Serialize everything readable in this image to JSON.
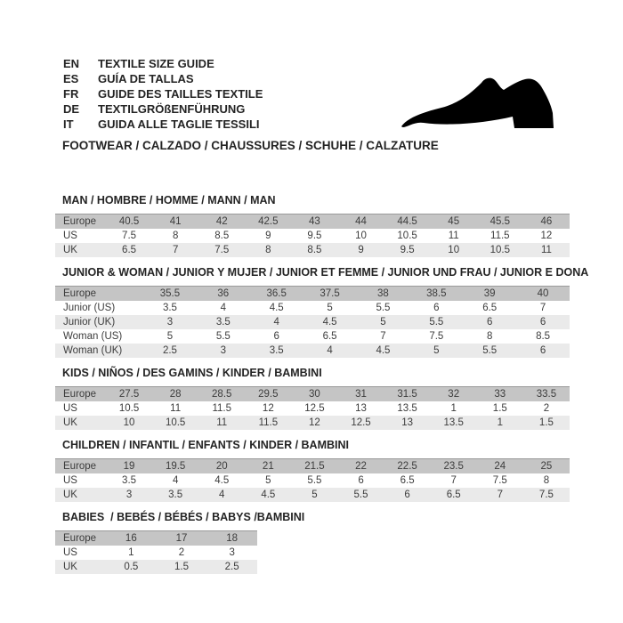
{
  "page": {
    "background": "#ffffff"
  },
  "header": {
    "languages": [
      {
        "code": "EN",
        "label": "TEXTILE SIZE GUIDE"
      },
      {
        "code": "ES",
        "label": "GUÍA DE TALLAS"
      },
      {
        "code": "FR",
        "label": "GUIDE DES TAILLES TEXTILE"
      },
      {
        "code": "DE",
        "label": "TEXTILGRÖßENFÜHRUNG"
      },
      {
        "code": "IT",
        "label": "GUIDA ALLE TAGLIE TESSILI"
      }
    ],
    "category_heading": "FOOTWEAR / CALZADO / CHAUSSURES / SCHUHE / CALZATURE",
    "icon": {
      "name": "dress-shoe-silhouette",
      "color": "#000000"
    }
  },
  "colors": {
    "header_row_bg": "#c5c5c5",
    "header_row_border": "#9a9a9a",
    "alt_row_bg": "#eaeaea",
    "body_text": "#3d3d3d",
    "title_text": "#242424"
  },
  "tables": [
    {
      "id": "man",
      "title": "MAN / HOMBRE / HOMME / MANN / MAN",
      "rows": [
        {
          "label": "Europe",
          "header": true,
          "values": [
            "40.5",
            "41",
            "42",
            "42.5",
            "43",
            "44",
            "44.5",
            "45",
            "45.5",
            "46"
          ]
        },
        {
          "label": "US",
          "values": [
            "7.5",
            "8",
            "8.5",
            "9",
            "9.5",
            "10",
            "10.5",
            "11",
            "11.5",
            "12"
          ]
        },
        {
          "label": "UK",
          "values": [
            "6.5",
            "7",
            "7.5",
            "8",
            "8.5",
            "9",
            "9.5",
            "10",
            "10.5",
            "11"
          ]
        }
      ]
    },
    {
      "id": "junior-woman",
      "title": "JUNIOR & WOMAN / JUNIOR Y MUJER / JUNIOR ET FEMME / JUNIOR UND FRAU / JUNIOR E DONA",
      "rows": [
        {
          "label": "Europe",
          "header": true,
          "values": [
            "35.5",
            "36",
            "36.5",
            "37.5",
            "38",
            "38.5",
            "39",
            "40"
          ]
        },
        {
          "label": "Junior (US)",
          "values": [
            "3.5",
            "4",
            "4.5",
            "5",
            "5.5",
            "6",
            "6.5",
            "7"
          ]
        },
        {
          "label": "Junior (UK)",
          "values": [
            "3",
            "3.5",
            "4",
            "4.5",
            "5",
            "5.5",
            "6",
            "6"
          ]
        },
        {
          "label": "Woman (US)",
          "values": [
            "5",
            "5.5",
            "6",
            "6.5",
            "7",
            "7.5",
            "8",
            "8.5"
          ]
        },
        {
          "label": "Woman (UK)",
          "values": [
            "2.5",
            "3",
            "3.5",
            "4",
            "4.5",
            "5",
            "5.5",
            "6"
          ]
        }
      ]
    },
    {
      "id": "kids",
      "title": "KIDS / NIÑOS / DES GAMINS / KINDER / BAMBINI",
      "rows": [
        {
          "label": "Europe",
          "header": true,
          "values": [
            "27.5",
            "28",
            "28.5",
            "29.5",
            "30",
            "31",
            "31.5",
            "32",
            "33",
            "33.5"
          ]
        },
        {
          "label": "US",
          "values": [
            "10.5",
            "11",
            "11.5",
            "12",
            "12.5",
            "13",
            "13.5",
            "1",
            "1.5",
            "2"
          ]
        },
        {
          "label": "UK",
          "values": [
            "10",
            "10.5",
            "11",
            "11.5",
            "12",
            "12.5",
            "13",
            "13.5",
            "1",
            "1.5"
          ]
        }
      ]
    },
    {
      "id": "children",
      "title": "CHILDREN / INFANTIL / ENFANTS / KINDER / BAMBINI",
      "rows": [
        {
          "label": "Europe",
          "header": true,
          "values": [
            "19",
            "19.5",
            "20",
            "21",
            "21.5",
            "22",
            "22.5",
            "23.5",
            "24",
            "25"
          ]
        },
        {
          "label": "US",
          "values": [
            "3.5",
            "4",
            "4.5",
            "5",
            "5.5",
            "6",
            "6.5",
            "7",
            "7.5",
            "8"
          ]
        },
        {
          "label": "UK",
          "values": [
            "3",
            "3.5",
            "4",
            "4.5",
            "5",
            "5.5",
            "6",
            "6.5",
            "7",
            "7.5"
          ]
        }
      ]
    },
    {
      "id": "babies",
      "title": "BABIES  / BEBÉS / BÉBÉS / BABYS /BAMBINI",
      "rows": [
        {
          "label": "Europe",
          "header": true,
          "values": [
            "16",
            "17",
            "18"
          ]
        },
        {
          "label": "US",
          "values": [
            "1",
            "2",
            "3"
          ]
        },
        {
          "label": "UK",
          "values": [
            "0.5",
            "1.5",
            "2.5"
          ]
        }
      ]
    }
  ]
}
